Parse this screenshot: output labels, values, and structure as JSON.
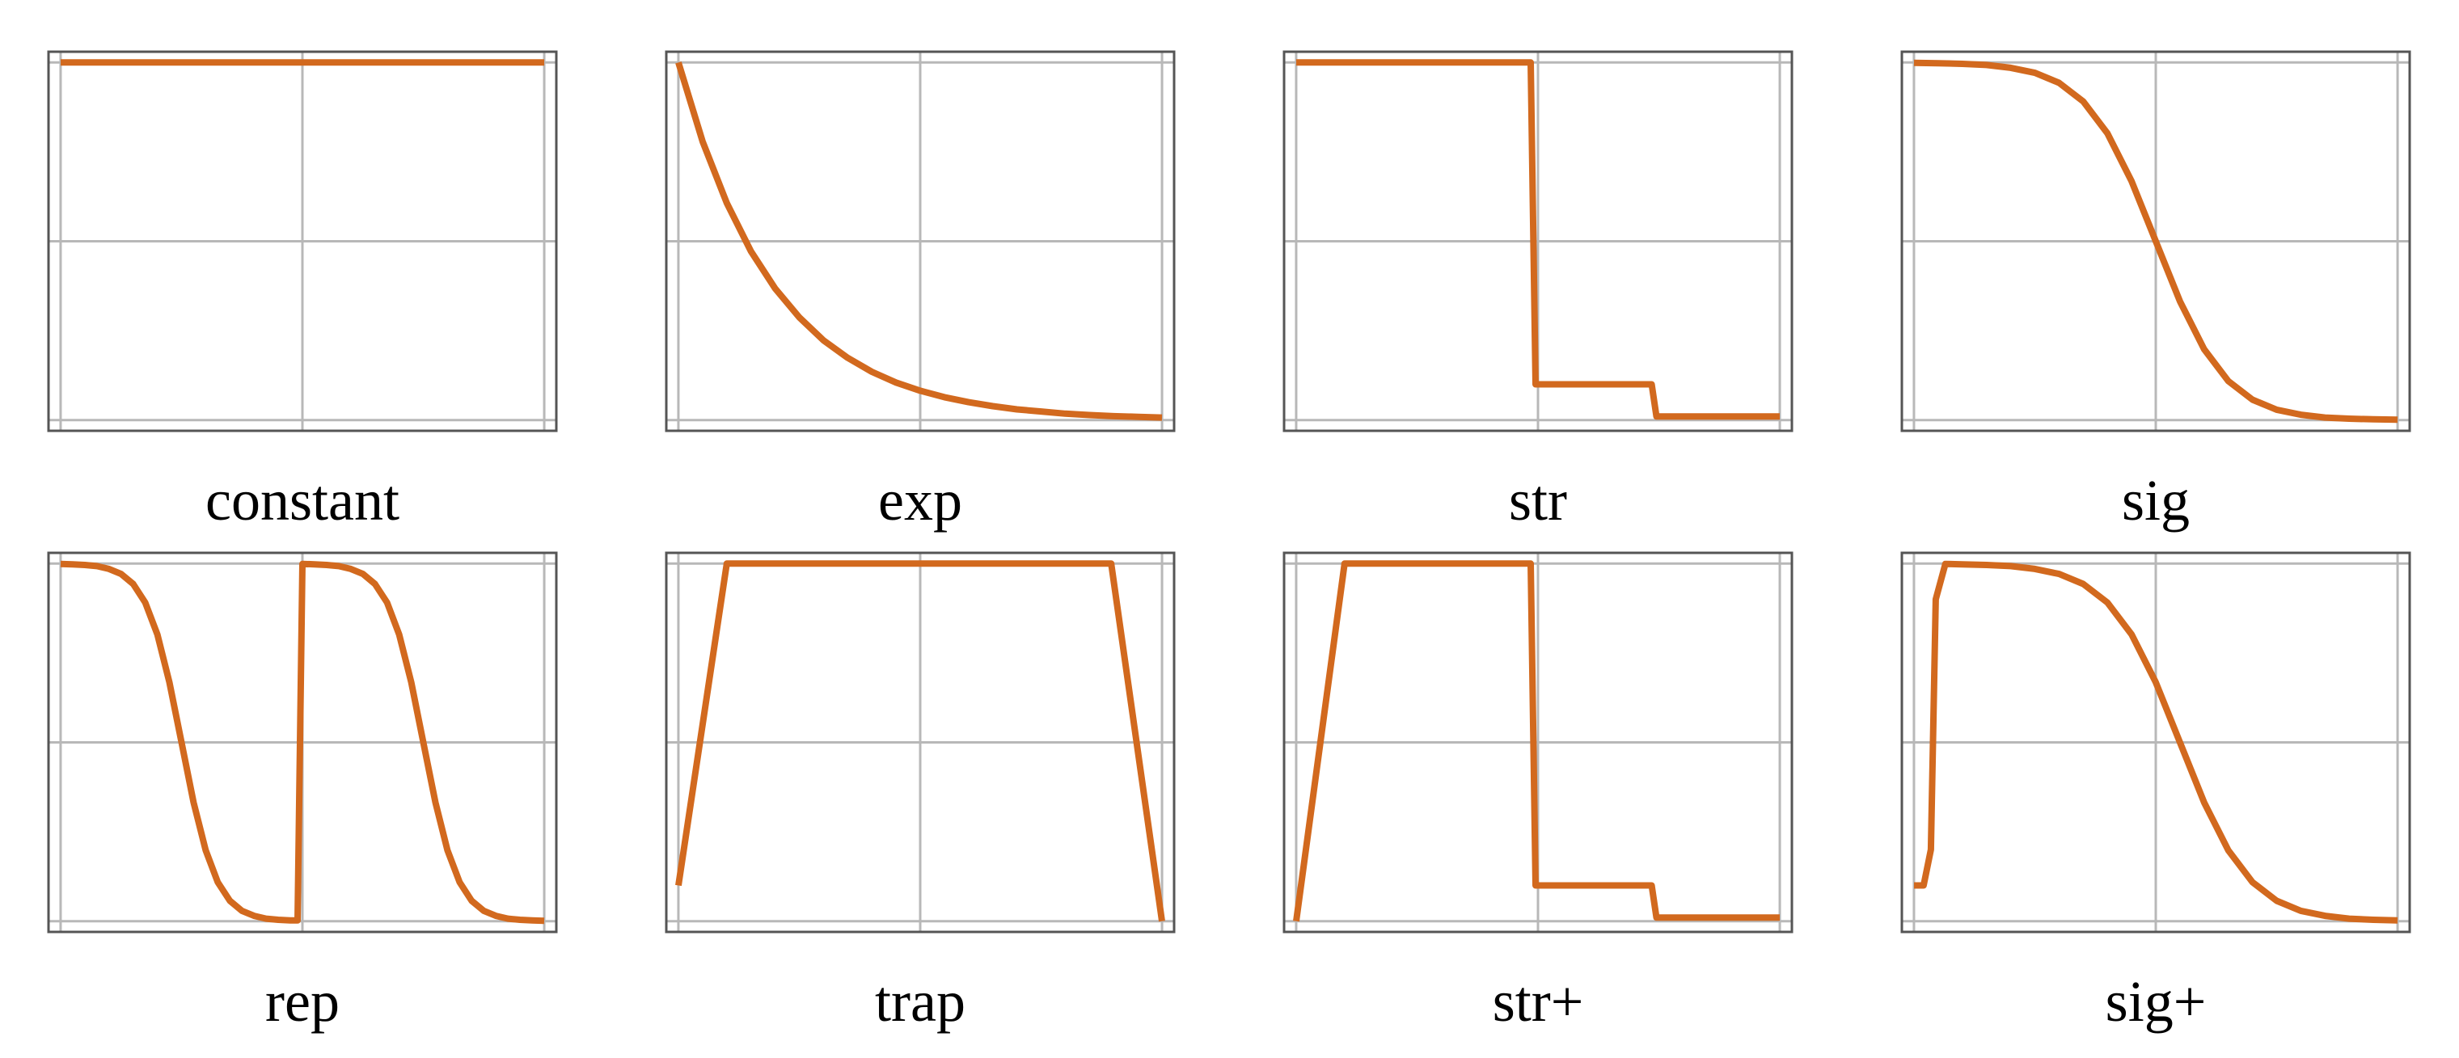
{
  "chart_data": [
    {
      "type": "line",
      "title": "constant",
      "x": [
        0,
        1
      ],
      "values": [
        1,
        1
      ],
      "color": "#d2691e",
      "xlim": [
        -0.025,
        1.025
      ],
      "ylim": [
        -0.03,
        1.03
      ],
      "xticks": [
        0,
        0.5,
        1
      ],
      "yticks": [
        0,
        0.5,
        1
      ],
      "grid": true
    },
    {
      "type": "line",
      "title": "exp",
      "x": [
        0,
        0.05,
        0.1,
        0.15,
        0.2,
        0.25,
        0.3,
        0.35,
        0.4,
        0.45,
        0.5,
        0.55,
        0.6,
        0.65,
        0.7,
        0.75,
        0.8,
        0.85,
        0.9,
        0.95,
        1
      ],
      "values": [
        1,
        0.779,
        0.607,
        0.472,
        0.368,
        0.287,
        0.223,
        0.174,
        0.135,
        0.105,
        0.082,
        0.064,
        0.05,
        0.039,
        0.03,
        0.024,
        0.018,
        0.014,
        0.011,
        0.009,
        0.007
      ],
      "color": "#d2691e",
      "xlim": [
        -0.025,
        1.025
      ],
      "ylim": [
        -0.03,
        1.03
      ],
      "xticks": [
        0,
        0.5,
        1
      ],
      "yticks": [
        0,
        0.5,
        1
      ],
      "grid": true
    },
    {
      "type": "line",
      "title": "str",
      "x": [
        0,
        0.485,
        0.495,
        0.735,
        0.745,
        1
      ],
      "values": [
        1,
        1,
        0.1,
        0.1,
        0.01,
        0.01
      ],
      "color": "#d2691e",
      "xlim": [
        -0.025,
        1.025
      ],
      "ylim": [
        -0.03,
        1.03
      ],
      "xticks": [
        0,
        0.5,
        1
      ],
      "yticks": [
        0,
        0.5,
        1
      ],
      "grid": true
    },
    {
      "type": "line",
      "title": "sig",
      "x": [
        0,
        0.05,
        0.1,
        0.15,
        0.2,
        0.25,
        0.3,
        0.35,
        0.4,
        0.45,
        0.5,
        0.55,
        0.6,
        0.65,
        0.7,
        0.75,
        0.8,
        0.85,
        0.9,
        0.95,
        1
      ],
      "values": [
        0.999,
        0.998,
        0.996,
        0.993,
        0.985,
        0.971,
        0.943,
        0.891,
        0.802,
        0.668,
        0.5,
        0.332,
        0.198,
        0.109,
        0.057,
        0.029,
        0.015,
        0.007,
        0.004,
        0.002,
        0.001
      ],
      "color": "#d2691e",
      "xlim": [
        -0.025,
        1.025
      ],
      "ylim": [
        -0.03,
        1.03
      ],
      "xticks": [
        0,
        0.5,
        1
      ],
      "yticks": [
        0,
        0.5,
        1
      ],
      "grid": true
    },
    {
      "type": "line",
      "title": "rep",
      "x": [
        0,
        0.025,
        0.05,
        0.075,
        0.1,
        0.125,
        0.15,
        0.175,
        0.2,
        0.225,
        0.25,
        0.275,
        0.3,
        0.325,
        0.35,
        0.375,
        0.4,
        0.425,
        0.45,
        0.475,
        0.49,
        0.5,
        0.525,
        0.55,
        0.575,
        0.6,
        0.625,
        0.65,
        0.675,
        0.7,
        0.725,
        0.75,
        0.775,
        0.8,
        0.825,
        0.85,
        0.875,
        0.9,
        0.925,
        0.95,
        0.975,
        1
      ],
      "values": [
        0.999,
        0.998,
        0.996,
        0.993,
        0.985,
        0.971,
        0.943,
        0.891,
        0.802,
        0.668,
        0.5,
        0.332,
        0.198,
        0.109,
        0.057,
        0.029,
        0.015,
        0.007,
        0.004,
        0.002,
        0.002,
        0.999,
        0.998,
        0.996,
        0.993,
        0.985,
        0.971,
        0.943,
        0.891,
        0.802,
        0.668,
        0.5,
        0.332,
        0.198,
        0.109,
        0.057,
        0.029,
        0.015,
        0.007,
        0.004,
        0.002,
        0.001
      ],
      "color": "#d2691e",
      "xlim": [
        -0.025,
        1.025
      ],
      "ylim": [
        -0.03,
        1.03
      ],
      "xticks": [
        0,
        0.5,
        1
      ],
      "yticks": [
        0,
        0.5,
        1
      ],
      "grid": true
    },
    {
      "type": "line",
      "title": "trap",
      "x": [
        0,
        0.1,
        0.895,
        1
      ],
      "values": [
        0.1,
        1,
        1,
        0
      ],
      "color": "#d2691e",
      "xlim": [
        -0.025,
        1.025
      ],
      "ylim": [
        -0.03,
        1.03
      ],
      "xticks": [
        0,
        0.5,
        1
      ],
      "yticks": [
        0,
        0.5,
        1
      ],
      "grid": true
    },
    {
      "type": "line",
      "title": "str+",
      "x": [
        0,
        0.1,
        0.485,
        0.495,
        0.735,
        0.745,
        1
      ],
      "values": [
        0,
        1,
        1,
        0.1,
        0.1,
        0.01,
        0.01
      ],
      "color": "#d2691e",
      "xlim": [
        -0.025,
        1.025
      ],
      "ylim": [
        -0.03,
        1.03
      ],
      "xticks": [
        0,
        0.5,
        1
      ],
      "yticks": [
        0,
        0.5,
        1
      ],
      "grid": true
    },
    {
      "type": "line",
      "title": "sig+",
      "x": [
        0,
        0.02,
        0.035,
        0.045,
        0.065,
        0.1,
        0.15,
        0.2,
        0.25,
        0.3,
        0.35,
        0.4,
        0.45,
        0.5,
        0.55,
        0.6,
        0.65,
        0.7,
        0.75,
        0.8,
        0.85,
        0.9,
        0.95,
        1
      ],
      "values": [
        0.1,
        0.1,
        0.2,
        0.9,
        0.999,
        0.998,
        0.996,
        0.993,
        0.985,
        0.971,
        0.943,
        0.891,
        0.802,
        0.668,
        0.5,
        0.332,
        0.198,
        0.109,
        0.057,
        0.029,
        0.015,
        0.007,
        0.004,
        0.002
      ],
      "color": "#d2691e",
      "xlim": [
        -0.025,
        1.025
      ],
      "ylim": [
        -0.03,
        1.03
      ],
      "xticks": [
        0,
        0.5,
        1
      ],
      "yticks": [
        0,
        0.5,
        1
      ],
      "grid": true
    }
  ]
}
